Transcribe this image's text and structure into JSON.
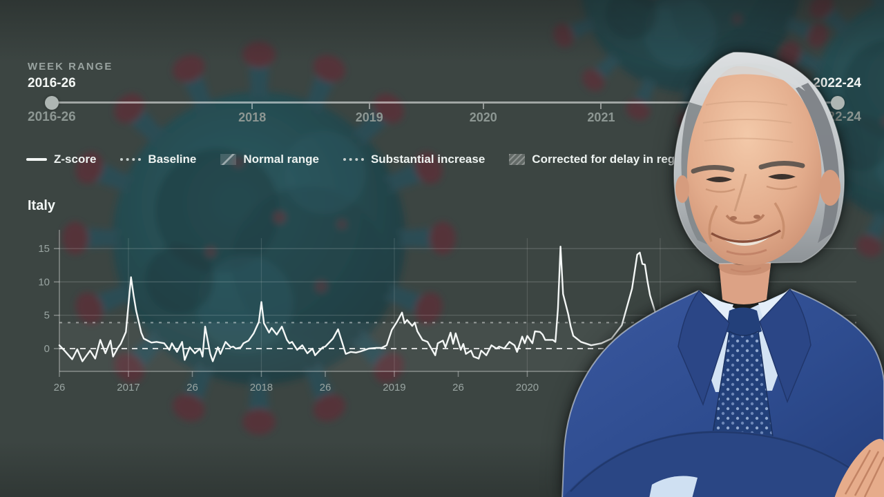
{
  "week_range": {
    "label": "WEEK RANGE",
    "start_value": "2016-26",
    "end_value": "2022-24",
    "start_tick_label": "2016-26",
    "end_tick_label": "2022-24",
    "ticks": [
      {
        "label": "2018",
        "pos": 0.255
      },
      {
        "label": "2019",
        "pos": 0.404
      },
      {
        "label": "2020",
        "pos": 0.549
      },
      {
        "label": "2021",
        "pos": 0.699
      }
    ]
  },
  "legend": {
    "items": [
      {
        "label": "Z-score",
        "swatch": "solid-line"
      },
      {
        "label": "Baseline",
        "swatch": "dotted-line"
      },
      {
        "label": "Normal range",
        "swatch": "shaded-box"
      },
      {
        "label": "Substantial increase",
        "swatch": "dotted-line"
      },
      {
        "label": "Corrected for delay in registration",
        "swatch": "hatched-box"
      }
    ]
  },
  "chart_data": {
    "type": "line",
    "title": "Italy",
    "x_unit": "weeks since 2016-W26",
    "xticks": [
      {
        "label": "26",
        "week": 0
      },
      {
        "label": "2017",
        "week": 27
      },
      {
        "label": "26",
        "week": 52
      },
      {
        "label": "2018",
        "week": 79
      },
      {
        "label": "26",
        "week": 104
      },
      {
        "label": "2019",
        "week": 131
      },
      {
        "label": "26",
        "week": 156
      },
      {
        "label": "2020",
        "week": 183
      }
    ],
    "year_gridline_weeks": [
      27,
      79,
      131,
      183,
      235
    ],
    "yticks": [
      0,
      5,
      10,
      15
    ],
    "ylim": [
      -4,
      16.5
    ],
    "baseline": 0,
    "substantial_increase": 3.9,
    "normal_range": [
      -3.6,
      3.9
    ],
    "grid": true,
    "legend_position": "top-left",
    "series": [
      {
        "name": "Z-score",
        "points": [
          [
            0,
            0.5
          ],
          [
            2,
            -0.3
          ],
          [
            5,
            -1.6
          ],
          [
            7,
            -0.1
          ],
          [
            9,
            -1.9
          ],
          [
            12,
            -0.3
          ],
          [
            14,
            -1.5
          ],
          [
            16,
            1.3
          ],
          [
            18,
            -0.7
          ],
          [
            20,
            1.2
          ],
          [
            21,
            -1.2
          ],
          [
            23,
            0.2
          ],
          [
            24,
            0.7
          ],
          [
            26,
            2.5
          ],
          [
            28,
            10.7
          ],
          [
            29,
            8.0
          ],
          [
            30,
            5.7
          ],
          [
            32,
            2.4
          ],
          [
            33,
            1.5
          ],
          [
            36,
            0.9
          ],
          [
            38,
            1.0
          ],
          [
            41,
            0.8
          ],
          [
            43,
            -0.2
          ],
          [
            44,
            0.8
          ],
          [
            46,
            -0.5
          ],
          [
            48,
            1.0
          ],
          [
            49,
            -1.7
          ],
          [
            51,
            0.2
          ],
          [
            53,
            -0.7
          ],
          [
            55,
            0.0
          ],
          [
            56,
            -1.2
          ],
          [
            57,
            3.3
          ],
          [
            59,
            -0.8
          ],
          [
            60,
            -1.9
          ],
          [
            62,
            0.2
          ],
          [
            63,
            -0.8
          ],
          [
            65,
            1.0
          ],
          [
            67,
            0.2
          ],
          [
            68,
            0.3
          ],
          [
            69,
            0.0
          ],
          [
            71,
            0.2
          ],
          [
            72,
            0.8
          ],
          [
            74,
            1.2
          ],
          [
            76,
            2.3
          ],
          [
            78,
            4.0
          ],
          [
            79,
            7.0
          ],
          [
            80,
            3.8
          ],
          [
            82,
            2.4
          ],
          [
            83,
            3.1
          ],
          [
            85,
            2.1
          ],
          [
            87,
            3.3
          ],
          [
            89,
            1.3
          ],
          [
            90,
            0.8
          ],
          [
            91,
            1.0
          ],
          [
            93,
            -0.2
          ],
          [
            95,
            0.5
          ],
          [
            97,
            -0.7
          ],
          [
            99,
            0.0
          ],
          [
            100,
            -1.0
          ],
          [
            103,
            0.2
          ],
          [
            104,
            0.3
          ],
          [
            107,
            1.5
          ],
          [
            109,
            2.9
          ],
          [
            112,
            -0.8
          ],
          [
            114,
            -0.5
          ],
          [
            116,
            -0.6
          ],
          [
            118,
            -0.4
          ],
          [
            121,
            0.0
          ],
          [
            124,
            0.1
          ],
          [
            126,
            0.1
          ],
          [
            128,
            0.5
          ],
          [
            130,
            2.8
          ],
          [
            132,
            4.0
          ],
          [
            134,
            5.4
          ],
          [
            135,
            3.8
          ],
          [
            136,
            4.3
          ],
          [
            138,
            3.4
          ],
          [
            139,
            3.9
          ],
          [
            140,
            2.6
          ],
          [
            142,
            1.3
          ],
          [
            144,
            1.0
          ],
          [
            147,
            -1.0
          ],
          [
            148,
            0.8
          ],
          [
            150,
            1.2
          ],
          [
            151,
            0.2
          ],
          [
            153,
            2.4
          ],
          [
            154,
            0.7
          ],
          [
            155,
            2.3
          ],
          [
            157,
            -0.2
          ],
          [
            158,
            0.7
          ],
          [
            159,
            -0.8
          ],
          [
            161,
            -0.3
          ],
          [
            162,
            -1.2
          ],
          [
            164,
            -1.5
          ],
          [
            165,
            -0.3
          ],
          [
            167,
            -1.0
          ],
          [
            169,
            0.5
          ],
          [
            171,
            0.0
          ],
          [
            172,
            0.3
          ],
          [
            174,
            0.0
          ],
          [
            176,
            1.0
          ],
          [
            178,
            0.5
          ],
          [
            179,
            -0.5
          ],
          [
            181,
            1.8
          ],
          [
            182,
            0.8
          ],
          [
            183,
            1.9
          ],
          [
            185,
            0.8
          ],
          [
            186,
            2.6
          ],
          [
            188,
            2.5
          ],
          [
            189,
            2.1
          ],
          [
            190,
            1.3
          ],
          [
            193,
            1.3
          ],
          [
            194,
            1.0
          ],
          [
            195,
            6.0
          ],
          [
            196,
            15.3
          ],
          [
            197,
            8.2
          ],
          [
            199,
            5.2
          ],
          [
            200,
            3.3
          ],
          [
            201,
            1.9
          ],
          [
            204,
            1.0
          ],
          [
            208,
            0.5
          ],
          [
            212,
            0.8
          ],
          [
            216,
            1.5
          ],
          [
            220,
            3.5
          ],
          [
            224,
            9.0
          ],
          [
            226,
            14.1
          ],
          [
            227,
            14.4
          ],
          [
            228,
            12.7
          ],
          [
            229,
            12.6
          ],
          [
            230,
            10.1
          ],
          [
            231,
            8.0
          ],
          [
            233,
            5.5
          ],
          [
            236,
            3.5
          ],
          [
            240,
            2.5
          ]
        ]
      }
    ]
  },
  "colors": {
    "text_muted": "#9aa5a2",
    "text_bright": "#f2f6f4",
    "zscore_line": "#f4f7f6",
    "slider_handle": "#aeb6b3",
    "virus_body": "#1d5f6b",
    "virus_spike": "#7b3140",
    "suit_blue": "#2e4c8f"
  }
}
